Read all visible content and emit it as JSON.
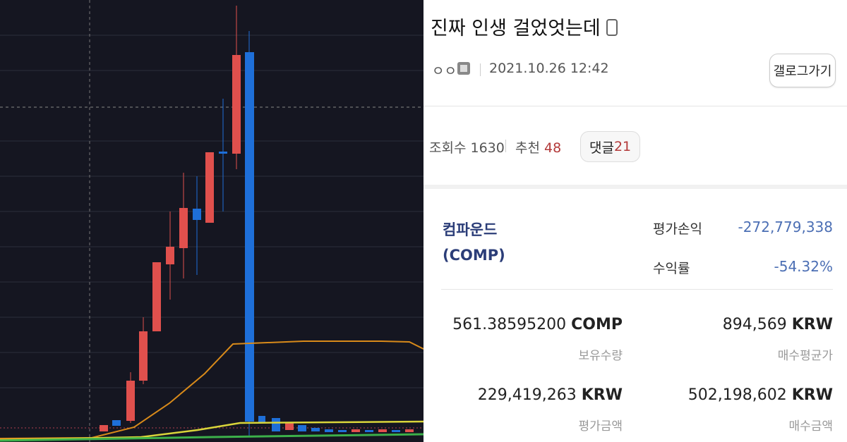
{
  "post": {
    "title": "진짜 인생 걸었엇는데",
    "author": "ㅇㅇ",
    "date": "2021.10.26 12:42",
    "gallog_button": "갤로그가기",
    "stats": [
      {
        "label": "조회수",
        "value": "1630"
      },
      {
        "label": "추천",
        "value": "48"
      },
      {
        "label": "댓글",
        "value": "21"
      }
    ]
  },
  "holding": {
    "name": "컴파운드",
    "ticker": "(COMP)",
    "summary": [
      {
        "label": "평가손익",
        "value": "-272,779,338"
      },
      {
        "label": "수익률",
        "value": "-54.32%"
      }
    ],
    "figures": [
      {
        "amount": "561.38595200",
        "unit": "COMP",
        "label": "보유수량"
      },
      {
        "amount": "894,569",
        "unit": "KRW",
        "label": "매수평균가"
      },
      {
        "amount": "229,419,263",
        "unit": "KRW",
        "label": "평가금액"
      },
      {
        "amount": "502,198,602",
        "unit": "KRW",
        "label": "매수금액"
      }
    ]
  }
}
